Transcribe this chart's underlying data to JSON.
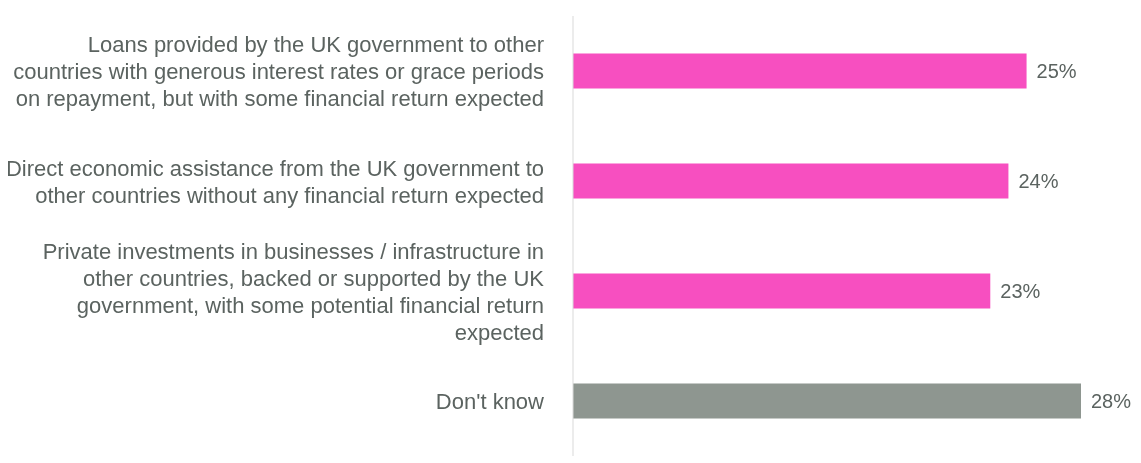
{
  "chart_data": {
    "type": "bar",
    "orientation": "horizontal",
    "categories": [
      "Loans provided by the UK government to other countries with generous interest rates or grace periods on repayment, but with some financial return expected",
      "Direct economic assistance from the UK government to other countries without any financial return expected",
      "Private investments in businesses / infrastructure in other countries, backed or supported by the UK government, with some potential financial return expected",
      "Don't know"
    ],
    "values": [
      25,
      24,
      23,
      28
    ],
    "colors": [
      "#f74fc0",
      "#f74fc0",
      "#f74fc0",
      "#8e9690"
    ],
    "value_labels": [
      "25%",
      "24%",
      "23%",
      "28%"
    ]
  }
}
